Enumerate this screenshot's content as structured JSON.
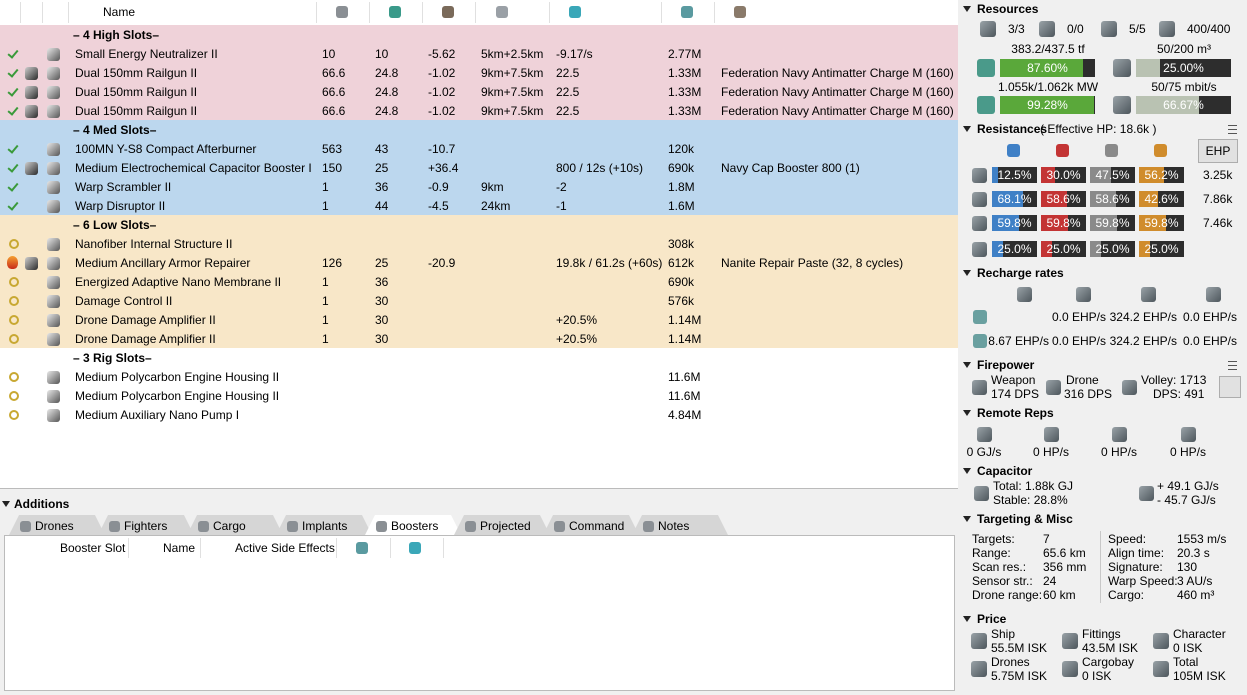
{
  "fitting": {
    "header": {
      "name": "Name"
    },
    "slot_groups": [
      {
        "label": "– 4 High Slots–",
        "color": "#efd2d9",
        "modules": [
          {
            "state": "active",
            "name": "Small Energy Neutralizer II",
            "cpu": "10",
            "pg": "10",
            "cap": "-5.62",
            "range": "5km+2.5km",
            "misc": "-9.17/s",
            "price": "2.77M"
          },
          {
            "state": "active",
            "name": "Dual 150mm Railgun II",
            "cpu": "66.6",
            "pg": "24.8",
            "cap": "-1.02",
            "range": "9km+7.5km",
            "misc": "22.5",
            "price": "1.33M",
            "charge": "Federation Navy Antimatter Charge M (160)"
          },
          {
            "state": "active",
            "name": "Dual 150mm Railgun II",
            "cpu": "66.6",
            "pg": "24.8",
            "cap": "-1.02",
            "range": "9km+7.5km",
            "misc": "22.5",
            "price": "1.33M",
            "charge": "Federation Navy Antimatter Charge M (160)"
          },
          {
            "state": "active",
            "name": "Dual 150mm Railgun II",
            "cpu": "66.6",
            "pg": "24.8",
            "cap": "-1.02",
            "range": "9km+7.5km",
            "misc": "22.5",
            "price": "1.33M",
            "charge": "Federation Navy Antimatter Charge M (160)"
          }
        ]
      },
      {
        "label": "– 4 Med Slots–",
        "color": "#bcd7ee",
        "modules": [
          {
            "state": "active",
            "name": "100MN Y-S8 Compact Afterburner",
            "cpu": "563",
            "pg": "43",
            "cap": "-10.7",
            "price": "120k"
          },
          {
            "state": "active",
            "name": "Medium Electrochemical Capacitor Booster I",
            "cpu": "150",
            "pg": "25",
            "cap": "+36.4",
            "misc": "800 / 12s (+10s)",
            "price": "690k",
            "charge": "Navy Cap Booster 800 (1)"
          },
          {
            "state": "active",
            "name": "Warp Scrambler II",
            "cpu": "1",
            "pg": "36",
            "cap": "-0.9",
            "range": "9km",
            "misc": "-2",
            "price": "1.8M"
          },
          {
            "state": "active",
            "name": "Warp Disruptor II",
            "cpu": "1",
            "pg": "44",
            "cap": "-4.5",
            "range": "24km",
            "misc": "-1",
            "price": "1.6M"
          }
        ]
      },
      {
        "label": "– 6 Low Slots–",
        "color": "#f8e7c8",
        "modules": [
          {
            "state": "online",
            "name": "Nanofiber Internal Structure II",
            "price": "308k"
          },
          {
            "state": "overheated",
            "name": "Medium Ancillary Armor Repairer",
            "cpu": "126",
            "pg": "25",
            "cap": "-20.9",
            "misc": "19.8k / 61.2s (+60s)",
            "price": "612k",
            "charge": "Nanite Repair Paste (32, 8 cycles)"
          },
          {
            "state": "online",
            "name": "Energized Adaptive Nano Membrane II",
            "cpu": "1",
            "pg": "36",
            "price": "690k"
          },
          {
            "state": "online",
            "name": "Damage Control II",
            "cpu": "1",
            "pg": "30",
            "price": "576k"
          },
          {
            "state": "online",
            "name": "Drone Damage Amplifier II",
            "cpu": "1",
            "pg": "30",
            "misc": "+20.5%",
            "price": "1.14M"
          },
          {
            "state": "online",
            "name": "Drone Damage Amplifier II",
            "cpu": "1",
            "pg": "30",
            "misc": "+20.5%",
            "price": "1.14M"
          }
        ]
      },
      {
        "label": "– 3 Rig Slots–",
        "color": "#ffffff",
        "modules": [
          {
            "state": "online",
            "name": "Medium Polycarbon Engine Housing II",
            "price": "11.6M"
          },
          {
            "state": "online",
            "name": "Medium Polycarbon Engine Housing II",
            "price": "11.6M"
          },
          {
            "state": "online",
            "name": "Medium Auxiliary Nano Pump I",
            "price": "4.84M"
          }
        ]
      }
    ]
  },
  "additions": {
    "title": "Additions",
    "tabs": [
      "Drones",
      "Fighters",
      "Cargo",
      "Implants",
      "Boosters",
      "Projected",
      "Command",
      "Notes"
    ],
    "active_tab": 4,
    "columns": [
      "Booster Slot",
      "Name",
      "Active Side Effects"
    ]
  },
  "stats": {
    "resources": {
      "title": "Resources",
      "counts": [
        "3/3",
        "0/0",
        "5/5",
        "400/400"
      ],
      "cpu": {
        "text": "383.2/437.5 tf",
        "bar": {
          "value": 87.6,
          "label": "87.60%",
          "color": "#5aa83a"
        }
      },
      "drone_bay": {
        "text": "50/200 m³",
        "bar": {
          "value": 25,
          "label": "25.00%",
          "color": "#b9c2b2"
        }
      },
      "powergrid": {
        "text": "1.055k/1.062k MW",
        "bar": {
          "value": 99.28,
          "label": "99.28%",
          "color": "#5aa83a"
        }
      },
      "bandwidth": {
        "text": "50/75 mbit/s",
        "bar": {
          "value": 66.67,
          "label": "66.67%",
          "color": "#b9c2b2"
        }
      }
    },
    "resistances": {
      "title": "Resistances",
      "effective_hp": "( Effective HP: 18.6k )",
      "button": "EHP",
      "colors": [
        "#3f80c6",
        "#c33434",
        "#8a8a8a",
        "#d08c2c"
      ],
      "rows": [
        {
          "values": [
            {
              "value": 12.5,
              "label": "12.5%"
            },
            {
              "value": 30,
              "label": "30.0%"
            },
            {
              "value": 47.5,
              "label": "47.5%"
            },
            {
              "value": 56.2,
              "label": "56.2%"
            }
          ],
          "ehp": "3.25k"
        },
        {
          "values": [
            {
              "value": 68.1,
              "label": "68.1%"
            },
            {
              "value": 58.6,
              "label": "58.6%"
            },
            {
              "value": 58.6,
              "label": "58.6%"
            },
            {
              "value": 42.6,
              "label": "42.6%"
            }
          ],
          "ehp": "7.86k"
        },
        {
          "values": [
            {
              "value": 59.8,
              "label": "59.8%"
            },
            {
              "value": 59.8,
              "label": "59.8%"
            },
            {
              "value": 59.8,
              "label": "59.8%"
            },
            {
              "value": 59.8,
              "label": "59.8%"
            }
          ],
          "ehp": "7.46k"
        },
        {
          "values": [
            {
              "value": 25,
              "label": "25.0%"
            },
            {
              "value": 25,
              "label": "25.0%"
            },
            {
              "value": 25,
              "label": "25.0%"
            },
            {
              "value": 25,
              "label": "25.0%"
            }
          ]
        }
      ]
    },
    "recharge": {
      "title": "Recharge rates",
      "rows": [
        [
          null,
          "0.0 EHP/s",
          "324.2 EHP/s",
          "0.0 EHP/s"
        ],
        [
          "8.67 EHP/s",
          "0.0 EHP/s",
          "324.2 EHP/s",
          "0.0 EHP/s"
        ]
      ]
    },
    "firepower": {
      "title": "Firepower",
      "weapon": "Weapon",
      "weapon_dps": "174 DPS",
      "drone": "Drone",
      "drone_dps": "316 DPS",
      "volley": "Volley: 1713",
      "dps": "DPS: 491"
    },
    "remote_reps": {
      "title": "Remote Reps",
      "values": [
        "0 GJ/s",
        "0 HP/s",
        "0 HP/s",
        "0 HP/s"
      ]
    },
    "capacitor": {
      "title": "Capacitor",
      "total": "Total: 1.88k GJ",
      "stable": "Stable: 28.8%",
      "recharge": "+ 49.1 GJ/s",
      "usage": "- 45.7 GJ/s"
    },
    "targeting": {
      "title": "Targeting & Misc",
      "left": [
        [
          "Targets:",
          "7"
        ],
        [
          "Range:",
          "65.6 km"
        ],
        [
          "Scan res.:",
          "356 mm"
        ],
        [
          "Sensor str.:",
          "24"
        ],
        [
          "Drone range:",
          "60 km"
        ]
      ],
      "right": [
        [
          "Speed:",
          "1553 m/s"
        ],
        [
          "Align time:",
          "20.3 s"
        ],
        [
          "Signature:",
          "130"
        ],
        [
          "Warp Speed:",
          "3 AU/s"
        ],
        [
          "Cargo:",
          "460 m³"
        ]
      ]
    },
    "price": {
      "title": "Price",
      "items": [
        [
          "Ship",
          "55.5M ISK"
        ],
        [
          "Fittings",
          "43.5M ISK"
        ],
        [
          "Character",
          "0 ISK"
        ],
        [
          "Drones",
          "5.75M ISK"
        ],
        [
          "Cargobay",
          "0 ISK"
        ],
        [
          "Total",
          "105M ISK"
        ]
      ]
    }
  }
}
